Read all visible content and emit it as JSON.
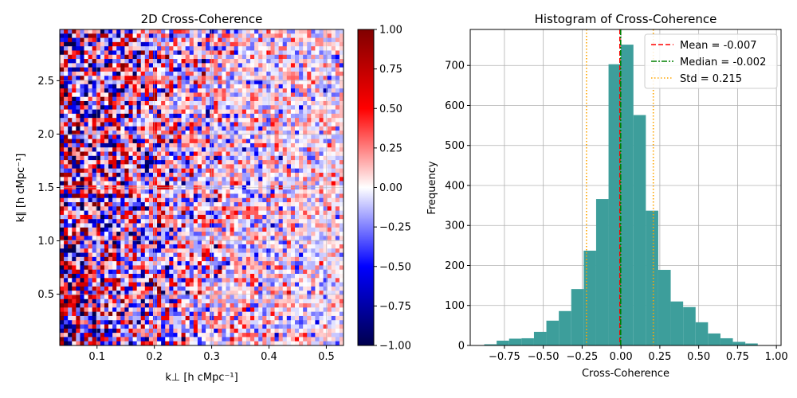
{
  "chart_data": [
    {
      "type": "heatmap",
      "title": "2D Cross-Coherence",
      "xlabel": "k⊥ [h cMpc⁻¹]",
      "ylabel": "k∥ [h cMpc⁻¹]",
      "xlim": [
        0.035,
        0.53
      ],
      "ylim": [
        0.02,
        2.98
      ],
      "x_ticks": [
        0.1,
        0.2,
        0.3,
        0.4,
        0.5
      ],
      "x_tick_labels": [
        "0.1",
        "0.2",
        "0.3",
        "0.4",
        "0.5"
      ],
      "y_ticks": [
        0.5,
        1.0,
        1.5,
        2.0,
        2.5
      ],
      "y_tick_labels": [
        "0.5",
        "1.0",
        "1.5",
        "2.0",
        "2.5"
      ],
      "grid_cols": 70,
      "grid_rows": 75,
      "colormap": "seismic",
      "colorbar": {
        "min": -1.0,
        "max": 1.0,
        "ticks": [
          1.0,
          0.75,
          0.5,
          0.25,
          0.0,
          -0.25,
          -0.5,
          -0.75,
          -1.0
        ],
        "tick_labels": [
          "1.00",
          "0.75",
          "0.50",
          "0.25",
          "0.00",
          "−0.25",
          "−0.50",
          "−0.75",
          "−1.00"
        ]
      },
      "grid": true
    },
    {
      "type": "bar",
      "title": "Histogram of Cross-Coherence",
      "xlabel": "Cross-Coherence",
      "ylabel": "Frequency",
      "xlim": [
        -0.97,
        1.03
      ],
      "ylim": [
        0,
        790
      ],
      "bar_color": "#3d9e9b",
      "bins": [
        {
          "x0": -0.88,
          "x1": -0.8,
          "count": 3
        },
        {
          "x0": -0.8,
          "x1": -0.72,
          "count": 12
        },
        {
          "x0": -0.72,
          "x1": -0.64,
          "count": 17
        },
        {
          "x0": -0.64,
          "x1": -0.56,
          "count": 18
        },
        {
          "x0": -0.56,
          "x1": -0.48,
          "count": 34
        },
        {
          "x0": -0.48,
          "x1": -0.4,
          "count": 62
        },
        {
          "x0": -0.4,
          "x1": -0.32,
          "count": 86
        },
        {
          "x0": -0.32,
          "x1": -0.24,
          "count": 141
        },
        {
          "x0": -0.24,
          "x1": -0.16,
          "count": 237
        },
        {
          "x0": -0.16,
          "x1": -0.08,
          "count": 366
        },
        {
          "x0": -0.08,
          "x1": 0.0,
          "count": 703
        },
        {
          "x0": 0.0,
          "x1": 0.08,
          "count": 752
        },
        {
          "x0": 0.08,
          "x1": 0.16,
          "count": 576
        },
        {
          "x0": 0.16,
          "x1": 0.24,
          "count": 337
        },
        {
          "x0": 0.24,
          "x1": 0.32,
          "count": 189
        },
        {
          "x0": 0.32,
          "x1": 0.4,
          "count": 110
        },
        {
          "x0": 0.4,
          "x1": 0.48,
          "count": 96
        },
        {
          "x0": 0.48,
          "x1": 0.56,
          "count": 58
        },
        {
          "x0": 0.56,
          "x1": 0.64,
          "count": 30
        },
        {
          "x0": 0.64,
          "x1": 0.72,
          "count": 18
        },
        {
          "x0": 0.72,
          "x1": 0.8,
          "count": 9
        },
        {
          "x0": 0.8,
          "x1": 0.88,
          "count": 5
        },
        {
          "x0": 0.88,
          "x1": 0.96,
          "count": 1
        }
      ],
      "x_ticks": [
        -0.75,
        -0.5,
        -0.25,
        0.0,
        0.25,
        0.5,
        0.75,
        1.0
      ],
      "x_tick_labels": [
        "−0.75",
        "−0.50",
        "−0.25",
        "0.00",
        "0.25",
        "0.50",
        "0.75",
        "1.00"
      ],
      "y_ticks": [
        0,
        100,
        200,
        300,
        400,
        500,
        600,
        700
      ],
      "y_tick_labels": [
        "0",
        "100",
        "200",
        "300",
        "400",
        "500",
        "600",
        "700"
      ],
      "lines": [
        {
          "name": "Mean = -0.007",
          "x": [
            -0.007
          ],
          "color": "#ff0000",
          "style": "dashed"
        },
        {
          "name": "Median = -0.002",
          "x": [
            -0.002
          ],
          "color": "#008000",
          "style": "dashdot"
        },
        {
          "name": "Std = 0.215",
          "x": [
            -0.222,
            0.208
          ],
          "color": "#ffa500",
          "style": "dotted"
        }
      ],
      "legend": "top-right",
      "grid": true
    }
  ]
}
